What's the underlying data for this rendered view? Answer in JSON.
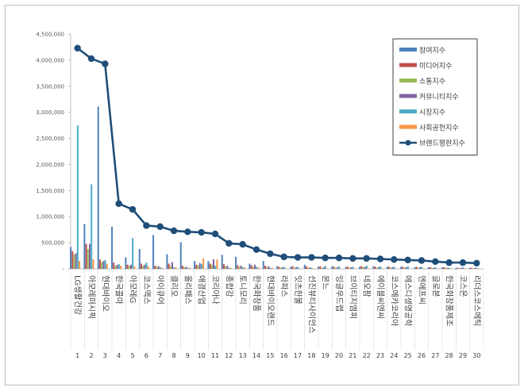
{
  "chart_data": {
    "type": "bar",
    "combo": "bar-with-line",
    "title": "",
    "xlabel": "",
    "ylabel": "",
    "ylim": [
      0,
      4500000
    ],
    "yticks": [
      "-",
      "500,000",
      "1,000,000",
      "1,500,000",
      "2,000,000",
      "2,500,000",
      "3,000,000",
      "3,500,000",
      "4,000,000",
      "4,500,000"
    ],
    "grid": false,
    "legend_position": "top-right",
    "categories": [
      "LG생활건강",
      "아모레퍼시픽",
      "현대바이오",
      "한국콜마",
      "아모레G",
      "코스맥스",
      "아이큐어",
      "클리오",
      "올리패스",
      "애경산업",
      "코리아나",
      "종합강",
      "토니모리",
      "한국화장품",
      "현대바이오랜드",
      "라파스",
      "잇츠한불",
      "선진뷰티사이언스",
      "본느",
      "잉글우드랩",
      "브이티지엠피",
      "네오팜",
      "에이블씨엔씨",
      "코스메카코리아",
      "에스디생명공학",
      "엔에프씨",
      "글로본",
      "한국화장품제조",
      "코스온",
      "리더스코스메틱"
    ],
    "ranks": [
      "1",
      "2",
      "3",
      "4",
      "5",
      "6",
      "7",
      "8",
      "9",
      "10",
      "11",
      "12",
      "13",
      "14",
      "15",
      "16",
      "17",
      "18",
      "19",
      "20",
      "21",
      "22",
      "23",
      "24",
      "25",
      "26",
      "27",
      "28",
      "29",
      "30"
    ],
    "series": [
      {
        "name": "참여지수",
        "type": "bar",
        "color": "#4f81bd",
        "values": [
          420000,
          860000,
          3110000,
          810000,
          220000,
          380000,
          650000,
          280000,
          510000,
          150000,
          150000,
          270000,
          230000,
          100000,
          150000,
          50000,
          40000,
          80000,
          40000,
          50000,
          40000,
          40000,
          50000,
          40000,
          40000,
          30000,
          30000,
          30000,
          20000,
          20000
        ]
      },
      {
        "name": "미디어지수",
        "type": "bar",
        "color": "#c0504d",
        "values": [
          340000,
          480000,
          180000,
          120000,
          80000,
          100000,
          60000,
          100000,
          60000,
          80000,
          100000,
          90000,
          70000,
          70000,
          60000,
          40000,
          50000,
          50000,
          50000,
          40000,
          40000,
          50000,
          40000,
          40000,
          40000,
          40000,
          30000,
          30000,
          20000,
          20000
        ]
      },
      {
        "name": "소통지수",
        "type": "bar",
        "color": "#9bbb59",
        "values": [
          280000,
          380000,
          130000,
          60000,
          60000,
          60000,
          40000,
          60000,
          30000,
          60000,
          80000,
          50000,
          40000,
          40000,
          30000,
          20000,
          20000,
          20000,
          20000,
          20000,
          20000,
          30000,
          20000,
          20000,
          20000,
          20000,
          20000,
          20000,
          10000,
          10000
        ]
      },
      {
        "name": "커뮤니티지수",
        "type": "bar",
        "color": "#8064a2",
        "values": [
          300000,
          480000,
          150000,
          80000,
          80000,
          80000,
          50000,
          130000,
          40000,
          110000,
          180000,
          60000,
          60000,
          80000,
          50000,
          30000,
          30000,
          30000,
          30000,
          30000,
          30000,
          40000,
          30000,
          30000,
          30000,
          30000,
          20000,
          20000,
          20000,
          20000
        ]
      },
      {
        "name": "시장지수",
        "type": "bar",
        "color": "#4bacc6",
        "values": [
          2750000,
          1620000,
          170000,
          90000,
          590000,
          120000,
          30000,
          30000,
          20000,
          90000,
          60000,
          20000,
          30000,
          40000,
          20000,
          40000,
          40000,
          20000,
          60000,
          50000,
          40000,
          60000,
          50000,
          40000,
          50000,
          40000,
          30000,
          20000,
          30000,
          20000
        ]
      },
      {
        "name": "사회공헌지수",
        "type": "bar",
        "color": "#f79646",
        "values": [
          150000,
          180000,
          100000,
          60000,
          50000,
          50000,
          20000,
          30000,
          20000,
          200000,
          180000,
          20000,
          30000,
          30000,
          20000,
          10000,
          10000,
          10000,
          10000,
          10000,
          10000,
          10000,
          10000,
          10000,
          10000,
          10000,
          10000,
          10000,
          10000,
          10000
        ]
      },
      {
        "name": "브랜드평판지수",
        "type": "line",
        "color": "#1f4e79",
        "values": [
          4230000,
          4030000,
          3930000,
          1250000,
          1140000,
          830000,
          810000,
          730000,
          710000,
          700000,
          670000,
          490000,
          470000,
          370000,
          290000,
          230000,
          220000,
          220000,
          210000,
          210000,
          200000,
          200000,
          190000,
          180000,
          170000,
          160000,
          140000,
          120000,
          120000,
          110000
        ]
      }
    ]
  }
}
